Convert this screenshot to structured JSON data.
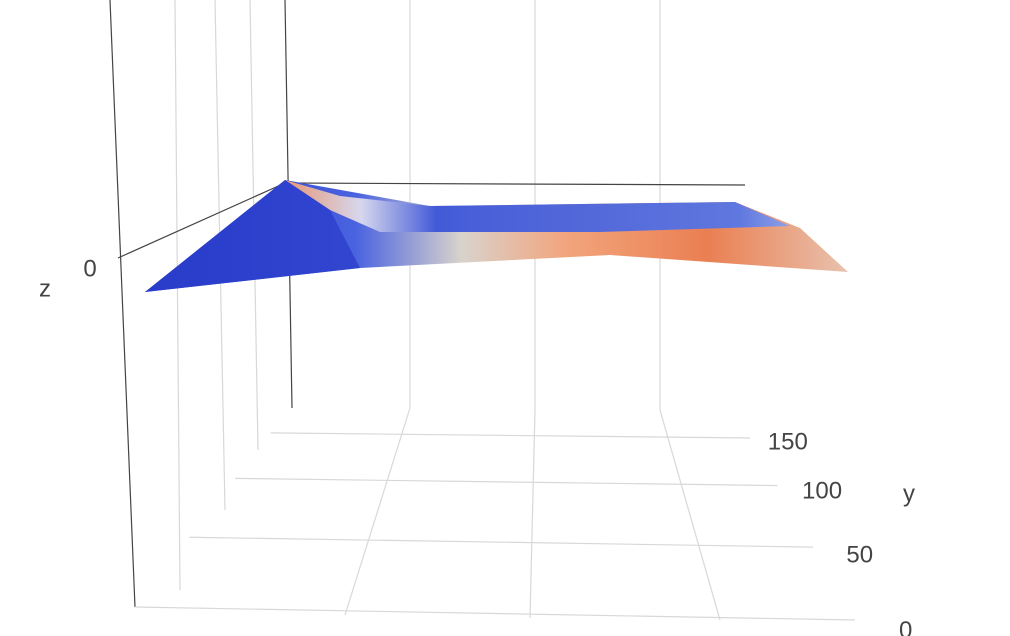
{
  "chart_data": {
    "type": "surface",
    "zaxis_title": "z",
    "yaxis_title": "y",
    "zticks": [
      0
    ],
    "ylim": [
      0,
      200
    ],
    "yticks": [
      0,
      50,
      100,
      150
    ]
  }
}
